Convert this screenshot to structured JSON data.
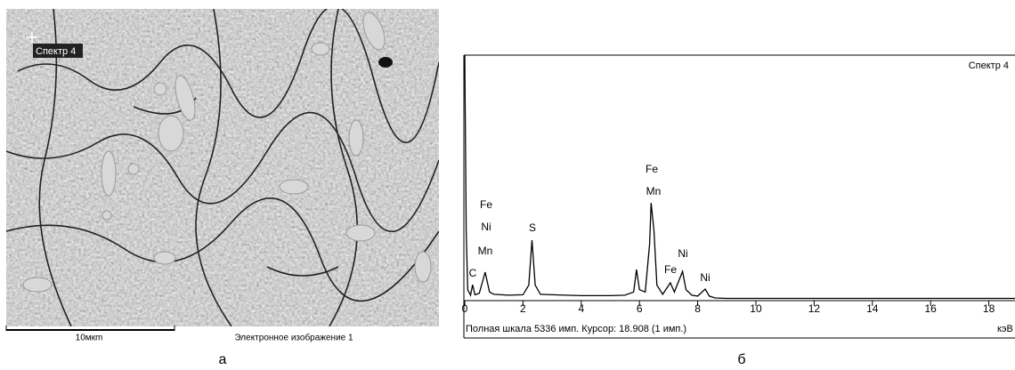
{
  "image_panel": {
    "marker_label": "Спектр 4",
    "scale_label": "10мкm",
    "image_caption": "Электронное изображение 1",
    "panel_label": "а"
  },
  "chart_data": {
    "type": "line",
    "title": "Спектр 4",
    "panel_label": "б",
    "status": "Полная шкала 5336 имп. Курсор: 18.908  (1 имп.)",
    "x_unit": "кэВ",
    "color": "#000000",
    "x": [
      0.0,
      0.05,
      0.1,
      0.2,
      0.27,
      0.35,
      0.5,
      0.7,
      0.85,
      1.0,
      1.5,
      2.0,
      2.2,
      2.31,
      2.42,
      2.6,
      3.0,
      3.5,
      4.0,
      4.5,
      5.0,
      5.5,
      5.8,
      5.9,
      6.0,
      6.2,
      6.35,
      6.4,
      6.5,
      6.6,
      6.8,
      7.06,
      7.2,
      7.48,
      7.6,
      7.8,
      8.0,
      8.26,
      8.4,
      8.6,
      9.0,
      10.0,
      12.0,
      14.0,
      16.0,
      18.0,
      18.9
    ],
    "values": [
      5336,
      1500,
      200,
      80,
      310,
      90,
      120,
      585,
      150,
      100,
      80,
      90,
      300,
      1285,
      300,
      100,
      90,
      80,
      70,
      70,
      70,
      80,
      150,
      640,
      200,
      150,
      1200,
      2100,
      1500,
      300,
      100,
      350,
      150,
      600,
      200,
      80,
      60,
      215,
      60,
      20,
      10,
      10,
      10,
      10,
      10,
      10,
      10
    ],
    "annotations": [
      "C",
      "Fe",
      "Ni",
      "Mn",
      "S",
      "Fe",
      "Mn",
      "Ni",
      "Fe",
      "Ni"
    ],
    "xlim": [
      0,
      18.9
    ],
    "ylim": [
      0,
      5336
    ],
    "xticks": [
      0,
      2,
      4,
      6,
      8,
      10,
      12,
      14,
      16,
      18
    ]
  }
}
